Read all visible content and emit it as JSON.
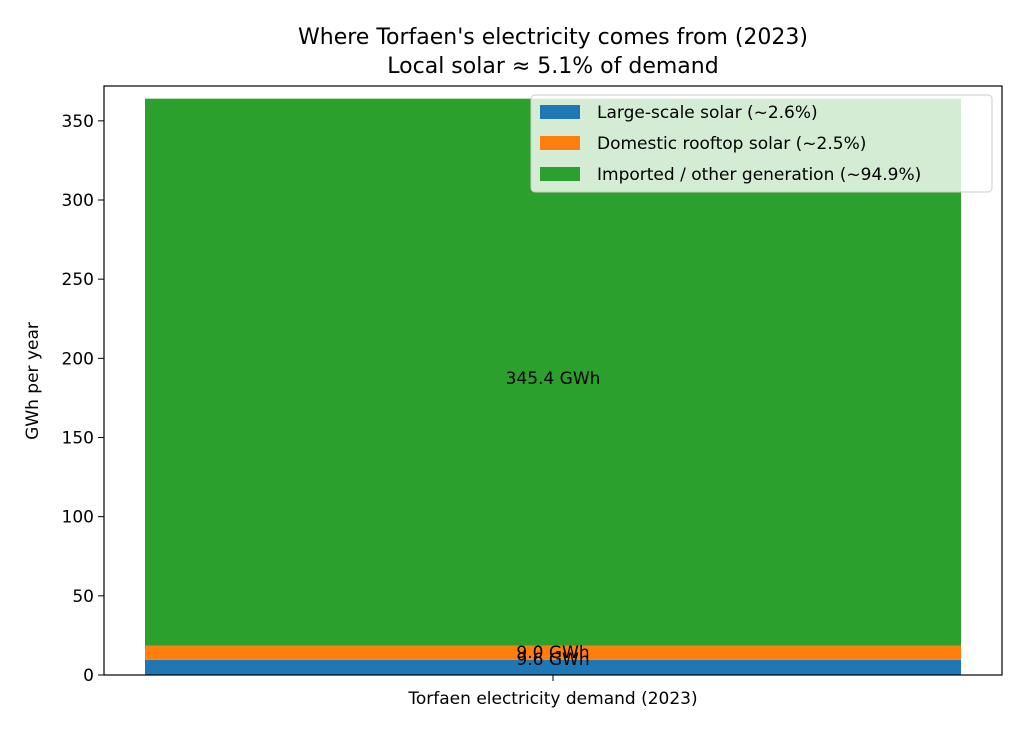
{
  "chart_data": {
    "type": "bar",
    "stacked": true,
    "title": "Where Torfaen's electricity comes from (2023)",
    "subtitle": "Local solar ≈ 5.1% of demand",
    "xlabel": "",
    "ylabel": "GWh per year",
    "categories": [
      "Torfaen electricity demand (2023)"
    ],
    "ylim": [
      0,
      372
    ],
    "yticks": [
      0,
      50,
      100,
      150,
      200,
      250,
      300,
      350
    ],
    "grid": false,
    "legend_position": "top-right",
    "series": [
      {
        "name": "Large-scale solar (~2.6%)",
        "values": [
          9.6
        ],
        "color": "#1f77b4",
        "label": "9.6 GWh"
      },
      {
        "name": "Domestic rooftop solar (~2.5%)",
        "values": [
          9.0
        ],
        "color": "#ff7f0e",
        "label": "9.0 GWh"
      },
      {
        "name": "Imported / other generation (~94.9%)",
        "values": [
          345.4
        ],
        "color": "#2ca02c",
        "label": "345.4 GWh"
      }
    ]
  }
}
